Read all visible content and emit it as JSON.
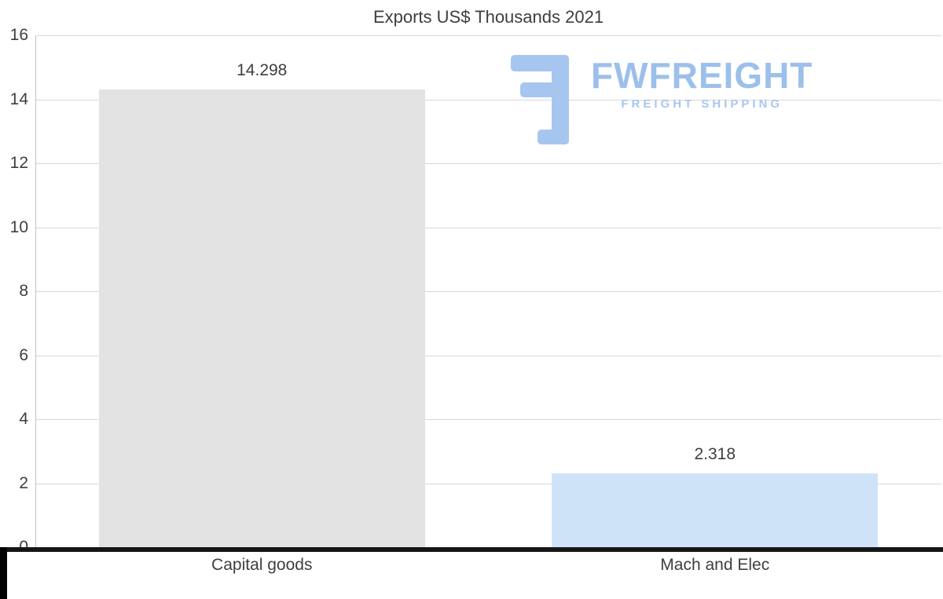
{
  "chart_data": {
    "type": "bar",
    "title": "Exports US$ Thousands 2021",
    "categories": [
      "Capital goods",
      "Mach and Elec"
    ],
    "values": [
      14.298,
      2.318
    ],
    "value_labels": [
      "14.298",
      "2.318"
    ],
    "bar_colors": [
      "#e3e3e3",
      "#cfe3f8"
    ],
    "ylim": [
      0,
      16
    ],
    "yticks": [
      0,
      2,
      4,
      6,
      8,
      10,
      12,
      14,
      16
    ],
    "grid": true,
    "legend": "none",
    "xlabel": "",
    "ylabel": ""
  },
  "logo": {
    "name": "FWFREIGHT",
    "subtitle": "FREIGHT SHIPPING",
    "color": "#9cc0ea"
  },
  "colors": {
    "text": "#3e3e3e",
    "gridline": "#d8d8d8",
    "axis_left": "#c2c2c2",
    "axis_bottom": "#151515",
    "background": "#ffffff"
  }
}
